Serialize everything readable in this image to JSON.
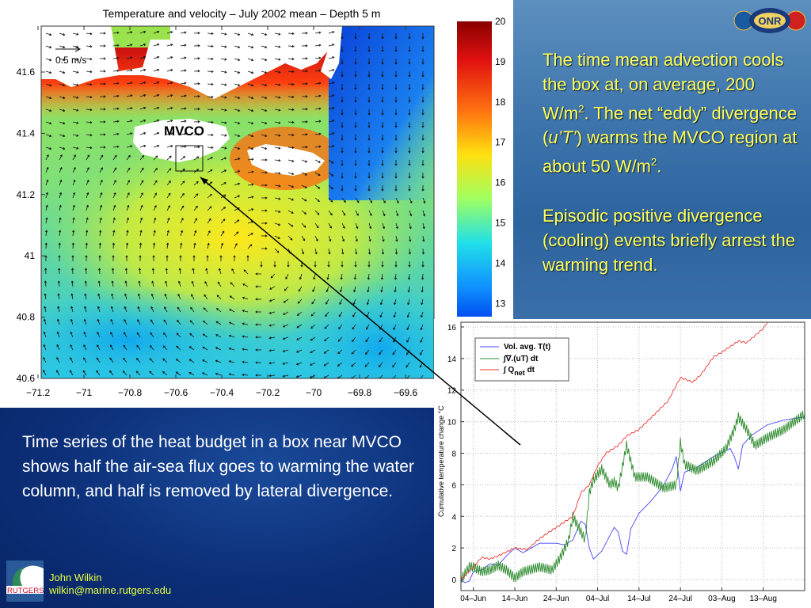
{
  "slide": {
    "right_text": {
      "p1_a": "The time mean advection cools the box at, on average, 200 W/m",
      "p1_sup": "2",
      "p1_b": ". The net “eddy” divergence (",
      "p1_ital": "u’T’",
      "p1_c": ") warms the MVCO region at about 50 W/m",
      "p1_sup2": "2",
      "p1_d": ".",
      "p2": "Episodic positive divergence (cooling) events briefly arrest the warming trend."
    },
    "left_text": "Time series of the heat budget in a box near MVCO shows half the air-sea flux goes to warming the water column, and half is removed by lateral divergence.",
    "author_name": "John Wilkin",
    "author_email": "wilkin@marine.rutgers.edu",
    "logos": {
      "rutgers": "RUTGERS MARINE & COASTAL SCIENCES",
      "onr": "ONR Science & Technology"
    },
    "colors": {
      "ocean_panel": "#3f76ad",
      "text_panel": "#0c2f78",
      "highlight_text": "#ffff5a",
      "author_text": "#e8ff40"
    }
  },
  "chart_data": [
    {
      "type": "heatmap",
      "title": "Temperature and velocity  – July 2002 mean – Depth 5 m",
      "xticks": [
        "−71.2",
        "−71",
        "−70.8",
        "−70.6",
        "−70.4",
        "−70.2",
        "−70",
        "−69.8",
        "−69.6"
      ],
      "yticks": [
        "41.6",
        "41.4",
        "41.2",
        "41",
        "40.8",
        "40.6"
      ],
      "xlim": [
        -71.2,
        -69.5
      ],
      "ylim": [
        40.6,
        41.75
      ],
      "colorbar": {
        "ticks": [
          "20",
          "19",
          "18",
          "17",
          "16",
          "15",
          "14",
          "13"
        ],
        "range": [
          12.8,
          20
        ],
        "colormap": "jet"
      },
      "scale_arrow_label": "0.5 m/s",
      "annotation": "MVCO",
      "box": {
        "lon": [
          -70.6,
          -70.48
        ],
        "lat": [
          41.28,
          41.36
        ]
      }
    },
    {
      "type": "line",
      "ylabel": "Cumulative temperature change °C",
      "xticks": [
        "04–Jun",
        "14–Jun",
        "24–Jun",
        "04–Jul",
        "14–Jul",
        "24–Jul",
        "03–Aug",
        "13–Aug"
      ],
      "xtick_dates": [
        "2002-06-04",
        "2002-06-14",
        "2002-06-24",
        "2002-07-04",
        "2002-07-14",
        "2002-07-24",
        "2002-08-03",
        "2002-08-13"
      ],
      "yticks": [
        "0",
        "2",
        "4",
        "6",
        "8",
        "10",
        "12",
        "14",
        "16"
      ],
      "xlim": [
        "2002-06-01",
        "2002-08-23"
      ],
      "ylim": [
        -0.7,
        16.3
      ],
      "grid": true,
      "legend_position": "top-left",
      "series": [
        {
          "name": "Vol. avg. T(t)",
          "color": "#4444ff",
          "x": [
            "06-01",
            "06-02",
            "06-03",
            "06-04",
            "06-06",
            "06-08",
            "06-10",
            "06-12",
            "06-14",
            "06-16",
            "06-20",
            "06-24",
            "06-26",
            "06-28",
            "06-30",
            "07-01",
            "07-02",
            "07-03",
            "07-05",
            "07-06",
            "07-08",
            "07-09",
            "07-10",
            "07-11",
            "07-12",
            "07-14",
            "07-17",
            "07-20",
            "07-22",
            "07-23",
            "07-24",
            "07-25",
            "07-28",
            "08-01",
            "08-05",
            "08-06",
            "08-07",
            "08-08",
            "08-10",
            "08-14",
            "08-18",
            "08-23"
          ],
          "y": [
            0,
            -0.2,
            -0.1,
            0.5,
            0.6,
            1,
            0.9,
            1.5,
            2,
            1.7,
            2.3,
            2.3,
            2.2,
            2.5,
            3.7,
            3.5,
            2,
            1.3,
            1.8,
            2.3,
            3.3,
            3,
            1.8,
            1.6,
            3.2,
            4.2,
            5,
            6,
            7,
            7.8,
            5.6,
            6.8,
            7.1,
            7.8,
            8.3,
            7.8,
            7,
            8.5,
            9.1,
            9.8,
            10.1,
            10.3
          ]
        },
        {
          "name": "∫∇.(uT) dt",
          "color": "#2e8b2e",
          "x": [
            "06-01",
            "06-03",
            "06-04",
            "06-06",
            "06-08",
            "06-10",
            "06-12",
            "06-14",
            "06-16",
            "06-20",
            "06-23",
            "06-25",
            "06-27",
            "06-28",
            "06-29",
            "07-01",
            "07-02",
            "07-03",
            "07-05",
            "07-07",
            "07-08",
            "07-09",
            "07-11",
            "07-13",
            "07-16",
            "07-20",
            "07-23",
            "07-24",
            "07-25",
            "07-28",
            "08-01",
            "08-04",
            "08-06",
            "08-07",
            "08-09",
            "08-11",
            "08-14",
            "08-18",
            "08-23"
          ],
          "y": [
            0,
            0.8,
            0.8,
            0.5,
            0.6,
            0.9,
            0.6,
            0.1,
            0.5,
            0.8,
            0.6,
            1.4,
            2.5,
            4,
            3.5,
            2.5,
            5.5,
            6.3,
            7,
            6,
            6.2,
            5.8,
            8.5,
            6.5,
            6.5,
            5.8,
            6,
            8.7,
            7.3,
            6.9,
            7.5,
            8.3,
            9.5,
            10.3,
            9.5,
            8.5,
            9,
            9.5,
            10.5
          ]
        },
        {
          "name": "∫ Q_net dt",
          "name_main": "∫ Q",
          "name_sub": "net",
          "name_tail": " dt",
          "color": "#ee3333",
          "x": [
            "06-01",
            "06-04",
            "06-06",
            "06-08",
            "06-10",
            "06-14",
            "06-17",
            "06-20",
            "06-24",
            "06-28",
            "06-30",
            "07-02",
            "07-04",
            "07-06",
            "07-09",
            "07-11",
            "07-14",
            "07-19",
            "07-21",
            "07-24",
            "07-27",
            "07-29",
            "08-01",
            "08-03",
            "08-07",
            "08-09",
            "08-13",
            "08-14"
          ],
          "y": [
            0,
            0.8,
            1.4,
            1.3,
            1.5,
            2,
            1.9,
            2.6,
            3.3,
            4,
            5.5,
            6,
            7.2,
            8,
            8.5,
            9.1,
            9.5,
            10.8,
            11.3,
            12.8,
            12.5,
            13,
            14.1,
            14.4,
            15.1,
            15,
            15.9,
            16.3
          ]
        }
      ]
    }
  ]
}
